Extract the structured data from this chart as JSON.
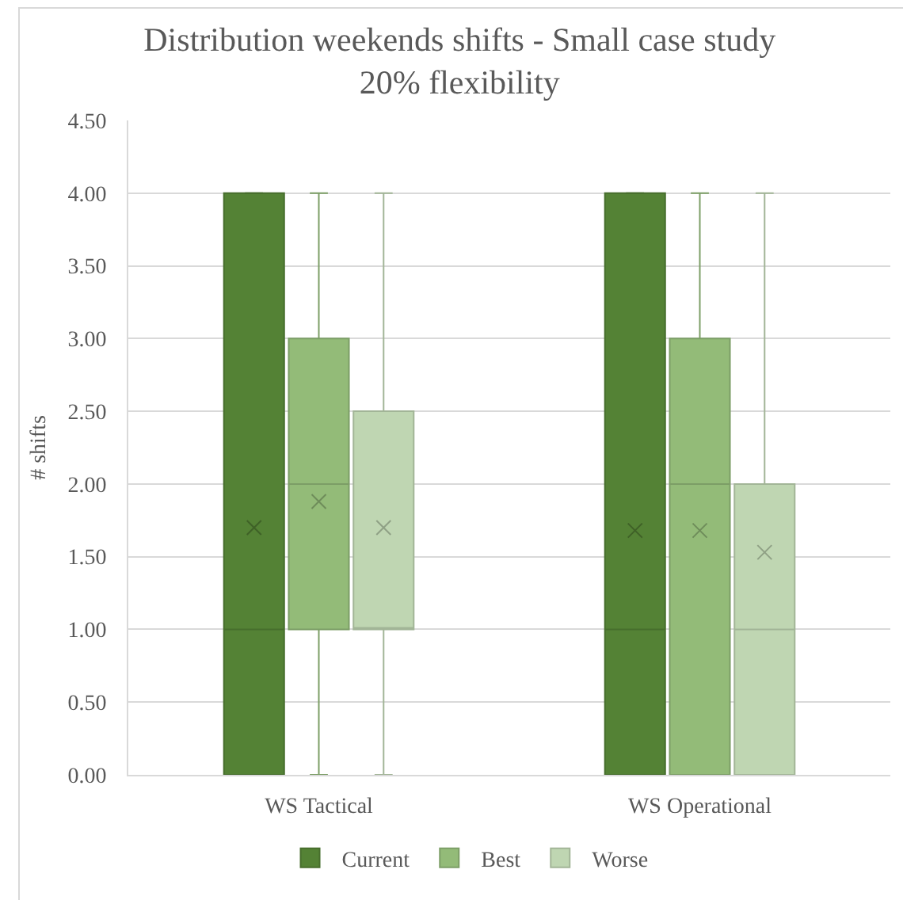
{
  "chart_data": {
    "type": "box",
    "title": "Distribution weekends shifts - Small case study\n20% flexibility",
    "ylabel": "# shifts",
    "categories": [
      "WS Tactical",
      "WS Operational"
    ],
    "ylim": [
      0,
      4.5
    ],
    "yticks": [
      {
        "value": 0,
        "label": "0.00"
      },
      {
        "value": 0.5,
        "label": "0.50"
      },
      {
        "value": 1,
        "label": "1.00"
      },
      {
        "value": 1.5,
        "label": "1.50"
      },
      {
        "value": 2,
        "label": "2.00"
      },
      {
        "value": 2.5,
        "label": "2.50"
      },
      {
        "value": 3,
        "label": "3.00"
      },
      {
        "value": 3.5,
        "label": "3.50"
      },
      {
        "value": 4,
        "label": "4.00"
      },
      {
        "value": 4.5,
        "label": "4.50"
      }
    ],
    "grid": "y",
    "legend": "bottom",
    "marker": "cross",
    "series": [
      {
        "name": "Current",
        "color": "#548235",
        "boxes": [
          {
            "low": 0,
            "q1": 0,
            "median": 1,
            "q3": 4,
            "high": 4,
            "mean": 1.7
          },
          {
            "low": 0,
            "q1": 0,
            "median": 1,
            "q3": 4,
            "high": 4,
            "mean": 1.68
          }
        ]
      },
      {
        "name": "Best",
        "color": "#93bb78",
        "boxes": [
          {
            "low": 0,
            "q1": 1,
            "median": 2,
            "q3": 3,
            "high": 4,
            "mean": 1.88
          },
          {
            "low": 0,
            "q1": 0,
            "median": 2,
            "q3": 3,
            "high": 4,
            "mean": 1.68
          }
        ]
      },
      {
        "name": "Worse",
        "color": "#bfd6b2",
        "boxes": [
          {
            "low": 0,
            "q1": 1,
            "median": 1,
            "q3": 2.5,
            "high": 4,
            "mean": 1.7
          },
          {
            "low": 0,
            "q1": 0,
            "median": 1,
            "q3": 2,
            "high": 4,
            "mean": 1.53
          }
        ]
      }
    ]
  }
}
